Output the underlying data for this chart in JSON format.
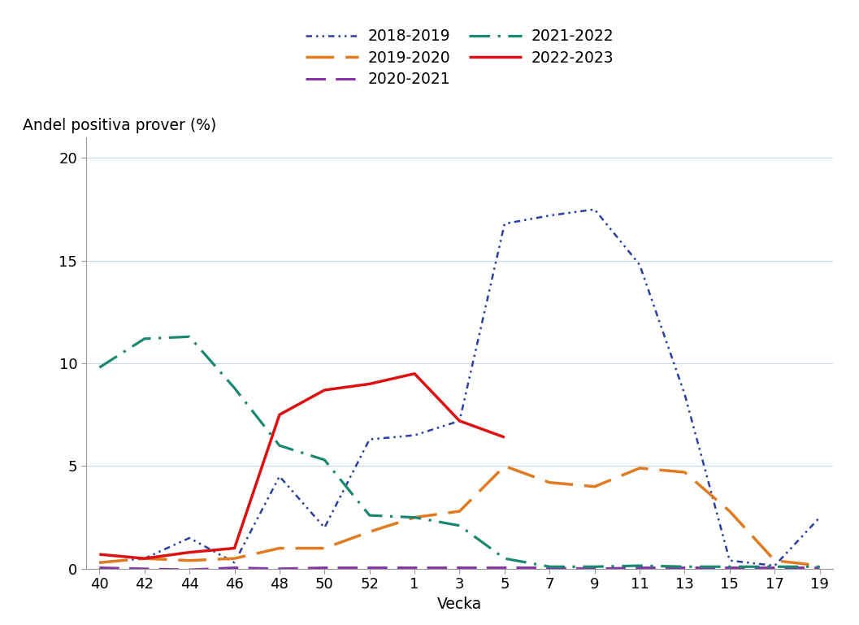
{
  "ylabel": "Andel positiva prover (%)",
  "xlabel": "Vecka",
  "xtick_labels": [
    "40",
    "42",
    "44",
    "46",
    "48",
    "50",
    "52",
    "1",
    "3",
    "5",
    "7",
    "9",
    "11",
    "13",
    "15",
    "17",
    "19"
  ],
  "ylim": [
    0,
    21
  ],
  "yticks": [
    0,
    5,
    10,
    15,
    20
  ],
  "series": [
    {
      "label": "2018-2019",
      "color": "#2b3f9e",
      "linestyle": [
        3,
        2,
        1,
        2,
        1,
        2
      ],
      "linewidth": 1.8,
      "values": [
        0.3,
        0.5,
        1.5,
        0.3,
        4.5,
        2.0,
        6.3,
        6.5,
        7.2,
        16.8,
        17.2,
        17.5,
        14.8,
        8.5,
        0.4,
        0.15,
        2.5
      ]
    },
    {
      "label": "2019-2020",
      "color": "#e07b20",
      "linestyle": [
        10,
        4
      ],
      "linewidth": 2.5,
      "values": [
        0.3,
        0.5,
        0.4,
        0.5,
        1.0,
        1.0,
        1.8,
        2.5,
        2.8,
        5.0,
        4.2,
        4.0,
        4.9,
        4.7,
        2.8,
        0.4,
        0.15
      ]
    },
    {
      "label": "2020-2021",
      "color": "#8833aa",
      "linestyle": [
        8,
        4
      ],
      "linewidth": 2.2,
      "values": [
        0.05,
        0.0,
        -0.05,
        0.05,
        0.0,
        0.05,
        0.05,
        0.05,
        0.05,
        0.05,
        0.05,
        0.0,
        0.05,
        0.05,
        0.05,
        0.05,
        0.05
      ]
    },
    {
      "label": "2021-2022",
      "color": "#1a8870",
      "linestyle": [
        8,
        3,
        1,
        3
      ],
      "linewidth": 2.3,
      "values": [
        9.8,
        11.2,
        11.3,
        8.8,
        6.0,
        5.3,
        2.6,
        2.5,
        2.1,
        0.5,
        0.1,
        0.1,
        0.15,
        0.1,
        0.1,
        0.1,
        0.1
      ]
    },
    {
      "label": "2022-2023",
      "color": "#dd1111",
      "linestyle": "solid",
      "linewidth": 2.5,
      "values": [
        0.7,
        0.5,
        0.8,
        1.0,
        7.5,
        8.7,
        9.0,
        9.5,
        7.2,
        6.4,
        null,
        null,
        null,
        null,
        null,
        null,
        null
      ]
    }
  ],
  "background_color": "#ffffff",
  "grid_color": "#c8d8e8",
  "legend_fontsize": 13.5,
  "axis_label_fontsize": 13.5,
  "tick_fontsize": 13
}
